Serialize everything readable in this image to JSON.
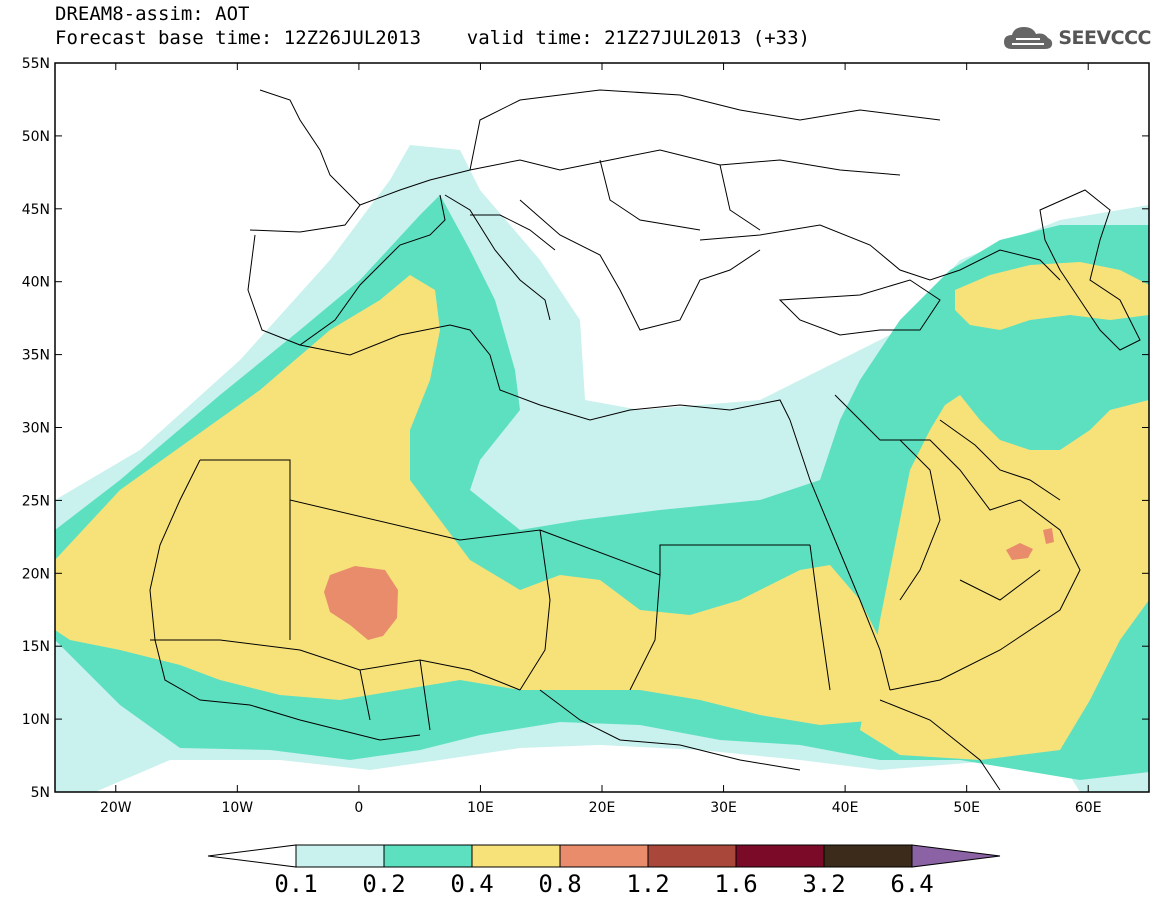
{
  "title": {
    "line1": "DREAM8-assim: AOT",
    "line2": "Forecast base time: 12Z26JUL2013    valid time: 21Z27JUL2013 (+33)"
  },
  "logo": {
    "icon": "cloud-icon",
    "text": "SEEVCCC"
  },
  "map": {
    "lon_range": [
      -25,
      65
    ],
    "lat_range": [
      5,
      55
    ],
    "lat_ticks": [
      "55N",
      "50N",
      "45N",
      "40N",
      "35N",
      "30N",
      "25N",
      "20N",
      "15N",
      "10N",
      "5N"
    ],
    "lon_ticks": [
      "20W",
      "10W",
      "0",
      "10E",
      "20E",
      "30E",
      "40E",
      "50E",
      "60E"
    ]
  },
  "colorbar": {
    "labels": [
      "0.1",
      "0.2",
      "0.4",
      "0.8",
      "1.2",
      "1.6",
      "3.2",
      "6.4"
    ],
    "colors": [
      "#ffffff",
      "#c9f1ee",
      "#5de0c0",
      "#f7e27a",
      "#e88c6c",
      "#a8473a",
      "#7b0a28",
      "#3c2a1a",
      "#8b63a4"
    ]
  }
}
